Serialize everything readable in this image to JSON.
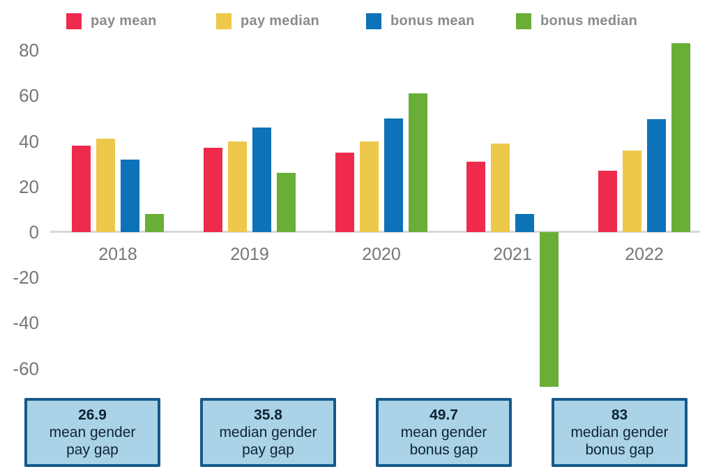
{
  "chart_data": {
    "type": "bar",
    "categories": [
      "2018",
      "2019",
      "2020",
      "2021",
      "2022"
    ],
    "series": [
      {
        "name": "pay mean",
        "color": "#ee2b4d",
        "values": [
          38,
          37,
          35,
          31,
          26.9
        ]
      },
      {
        "name": "pay median",
        "color": "#eec84b",
        "values": [
          41,
          40,
          40,
          39,
          35.8
        ]
      },
      {
        "name": "bonus mean",
        "color": "#0e72b8",
        "values": [
          32,
          46,
          50,
          8,
          49.7
        ]
      },
      {
        "name": "bonus median",
        "color": "#69ae36",
        "values": [
          8,
          26,
          61,
          -68,
          83
        ]
      }
    ],
    "title": "",
    "xlabel": "",
    "ylabel": "",
    "ylim": [
      -70,
      85
    ],
    "yticks": [
      80,
      60,
      40,
      20,
      0,
      -20,
      -40,
      -60
    ],
    "grid": false,
    "legend_position": "top"
  },
  "legend": {
    "items": [
      {
        "label": "pay mean",
        "color": "#ee2b4d"
      },
      {
        "label": "pay median",
        "color": "#eec84b"
      },
      {
        "label": "bonus mean",
        "color": "#0e72b8"
      },
      {
        "label": "bonus median",
        "color": "#69ae36"
      }
    ]
  },
  "summary_boxes": [
    {
      "value": "26.9",
      "line1": "mean gender",
      "line2": "pay gap"
    },
    {
      "value": "35.8",
      "line1": "median gender",
      "line2": "pay gap"
    },
    {
      "value": "49.7",
      "line1": "mean gender",
      "line2": "bonus gap"
    },
    {
      "value": "83",
      "line1": "median gender",
      "line2": "bonus gap"
    }
  ],
  "colors": {
    "axis_text": "#767676",
    "legend_text": "#8b8b8b",
    "zero_line": "#d8d8d8",
    "box_fill": "#aad3e7",
    "box_border": "#15598c",
    "box_text": "#0e2433"
  }
}
